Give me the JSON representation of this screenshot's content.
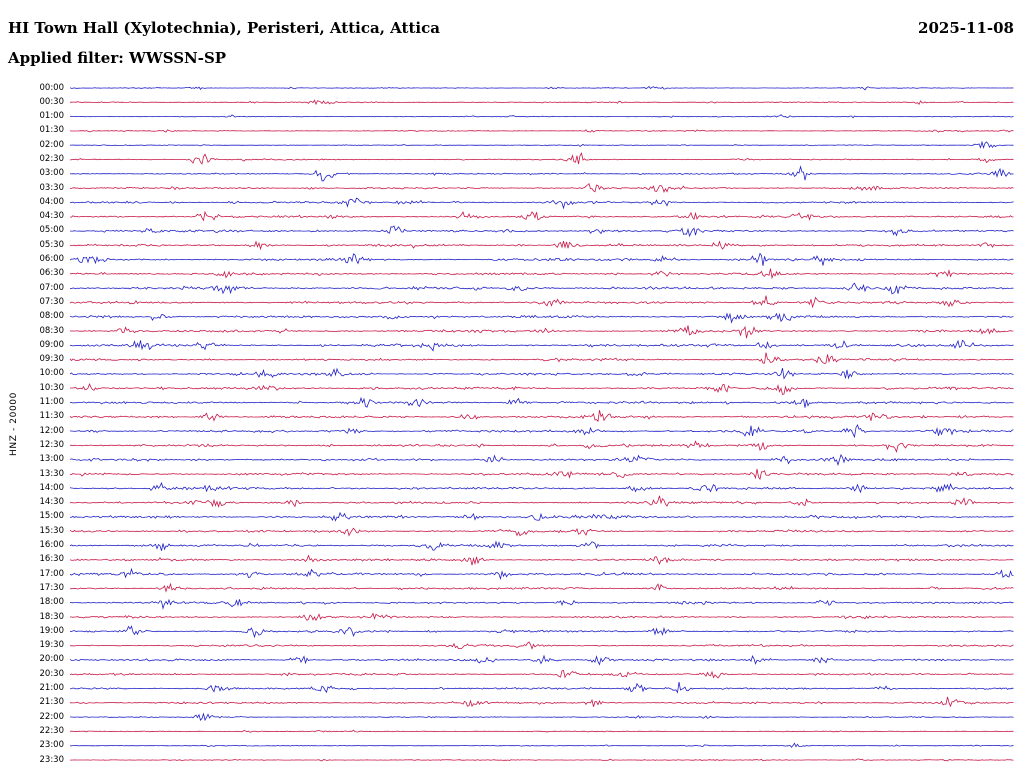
{
  "header": {
    "title": "HI Town Hall (Xylotechnia), Peristeri, Attica, Attica",
    "date": "2025-11-08",
    "filter": "Applied filter: WWSSN-SP"
  },
  "axis": {
    "station_label": "HNZ - 20000"
  },
  "chart_data": {
    "type": "seismogram-helicorder",
    "minutes_per_row": 30,
    "rows_count": 48,
    "seed": 20251108,
    "colors": {
      "b": "#2121c8",
      "r": "#c81848"
    },
    "x_range_label": [
      "start of half-hour",
      "end of half-hour"
    ],
    "rows": [
      {
        "t": "00:00",
        "c": "b",
        "a": 0.35,
        "e": [
          [
            0.62,
            0.8
          ]
        ]
      },
      {
        "t": "00:30",
        "c": "r",
        "a": 0.5,
        "e": [
          [
            0.27,
            0.6
          ],
          [
            0.9,
            0.7
          ]
        ]
      },
      {
        "t": "01:00",
        "c": "b",
        "a": 0.35,
        "e": []
      },
      {
        "t": "01:30",
        "c": "r",
        "a": 0.4,
        "e": [
          [
            0.55,
            0.5
          ]
        ]
      },
      {
        "t": "02:00",
        "c": "b",
        "a": 0.35,
        "e": [
          [
            0.97,
            1.8
          ]
        ]
      },
      {
        "t": "02:30",
        "c": "r",
        "a": 0.55,
        "e": [
          [
            0.14,
            2.6
          ],
          [
            0.535,
            2.8
          ],
          [
            0.97,
            1.0
          ]
        ]
      },
      {
        "t": "03:00",
        "c": "b",
        "a": 0.6,
        "e": [
          [
            0.27,
            2.2
          ],
          [
            0.775,
            2.6
          ],
          [
            0.985,
            1.4
          ]
        ]
      },
      {
        "t": "03:30",
        "c": "r",
        "a": 0.8,
        "e": [
          [
            0.555,
            2.0
          ],
          [
            0.625,
            1.8
          ],
          [
            0.845,
            1.6
          ]
        ]
      },
      {
        "t": "04:00",
        "c": "b",
        "a": 0.9,
        "e": [
          [
            0.3,
            2.2
          ],
          [
            0.52,
            1.5
          ],
          [
            0.625,
            1.3
          ]
        ]
      },
      {
        "t": "04:30",
        "c": "r",
        "a": 0.95,
        "e": [
          [
            0.145,
            1.8
          ],
          [
            0.42,
            1.2
          ],
          [
            0.49,
            1.4
          ],
          [
            0.655,
            1.6
          ],
          [
            0.775,
            1.7
          ]
        ]
      },
      {
        "t": "05:00",
        "c": "b",
        "a": 1.0,
        "e": [
          [
            0.085,
            1.2
          ],
          [
            0.345,
            1.5
          ],
          [
            0.56,
            1.2
          ],
          [
            0.655,
            2.0
          ],
          [
            0.875,
            1.4
          ]
        ]
      },
      {
        "t": "05:30",
        "c": "r",
        "a": 1.0,
        "e": [
          [
            0.2,
            1.3
          ],
          [
            0.525,
            1.6
          ],
          [
            0.69,
            1.8
          ],
          [
            0.975,
            1.2
          ]
        ]
      },
      {
        "t": "06:00",
        "c": "b",
        "a": 1.1,
        "e": [
          [
            0.02,
            1.6
          ],
          [
            0.3,
            1.4
          ],
          [
            0.63,
            1.5
          ],
          [
            0.73,
            2.4
          ],
          [
            0.8,
            1.4
          ]
        ]
      },
      {
        "t": "06:30",
        "c": "r",
        "a": 1.0,
        "e": [
          [
            0.165,
            1.4
          ],
          [
            0.625,
            1.5
          ],
          [
            0.745,
            2.0
          ],
          [
            0.925,
            1.3
          ]
        ]
      },
      {
        "t": "07:00",
        "c": "b",
        "a": 1.15,
        "e": [
          [
            0.165,
            2.2
          ],
          [
            0.475,
            1.3
          ],
          [
            0.83,
            2.2
          ],
          [
            0.875,
            2.6
          ]
        ]
      },
      {
        "t": "07:30",
        "c": "r",
        "a": 1.1,
        "e": [
          [
            0.51,
            1.4
          ],
          [
            0.735,
            2.2
          ],
          [
            0.79,
            1.8
          ],
          [
            0.935,
            1.6
          ]
        ]
      },
      {
        "t": "08:00",
        "c": "b",
        "a": 1.1,
        "e": [
          [
            0.09,
            1.3
          ],
          [
            0.345,
            1.2
          ],
          [
            0.7,
            1.9
          ],
          [
            0.755,
            2.3
          ]
        ]
      },
      {
        "t": "08:30",
        "c": "r",
        "a": 1.05,
        "e": [
          [
            0.06,
            1.2
          ],
          [
            0.5,
            1.3
          ],
          [
            0.655,
            1.7
          ],
          [
            0.72,
            2.1
          ],
          [
            0.975,
            1.3
          ]
        ]
      },
      {
        "t": "09:00",
        "c": "b",
        "a": 1.15,
        "e": [
          [
            0.075,
            1.6
          ],
          [
            0.145,
            1.5
          ],
          [
            0.385,
            1.6
          ],
          [
            0.74,
            1.4
          ],
          [
            0.815,
            1.5
          ],
          [
            0.945,
            1.7
          ]
        ]
      },
      {
        "t": "09:30",
        "c": "r",
        "a": 1.0,
        "e": [
          [
            0.74,
            2.4
          ],
          [
            0.8,
            2.0
          ]
        ]
      },
      {
        "t": "10:00",
        "c": "b",
        "a": 1.05,
        "e": [
          [
            0.21,
            1.4
          ],
          [
            0.285,
            1.6
          ],
          [
            0.6,
            1.2
          ],
          [
            0.755,
            1.5
          ],
          [
            0.825,
            1.4
          ]
        ]
      },
      {
        "t": "10:30",
        "c": "r",
        "a": 1.1,
        "e": [
          [
            0.02,
            1.4
          ],
          [
            0.21,
            1.3
          ],
          [
            0.69,
            1.6
          ],
          [
            0.755,
            1.9
          ]
        ]
      },
      {
        "t": "11:00",
        "c": "b",
        "a": 1.05,
        "e": [
          [
            0.315,
            1.5
          ],
          [
            0.365,
            1.3
          ],
          [
            0.475,
            1.2
          ],
          [
            0.775,
            1.8
          ]
        ]
      },
      {
        "t": "11:30",
        "c": "r",
        "a": 1.1,
        "e": [
          [
            0.15,
            1.6
          ],
          [
            0.42,
            1.3
          ],
          [
            0.565,
            2.2
          ],
          [
            0.855,
            1.5
          ]
        ]
      },
      {
        "t": "12:00",
        "c": "b",
        "a": 1.1,
        "e": [
          [
            0.3,
            1.2
          ],
          [
            0.55,
            1.3
          ],
          [
            0.72,
            1.8
          ],
          [
            0.83,
            1.6
          ],
          [
            0.925,
            1.9
          ]
        ]
      },
      {
        "t": "12:30",
        "c": "r",
        "a": 1.0,
        "e": [
          [
            0.555,
            1.3
          ],
          [
            0.665,
            1.4
          ],
          [
            0.73,
            1.6
          ],
          [
            0.875,
            2.2
          ]
        ]
      },
      {
        "t": "13:00",
        "c": "b",
        "a": 1.1,
        "e": [
          [
            0.45,
            1.3
          ],
          [
            0.6,
            1.4
          ],
          [
            0.755,
            1.7
          ],
          [
            0.81,
            1.9
          ]
        ]
      },
      {
        "t": "13:30",
        "c": "r",
        "a": 1.05,
        "e": [
          [
            0.525,
            1.6
          ],
          [
            0.585,
            1.5
          ],
          [
            0.73,
            1.5
          ],
          [
            0.945,
            1.3
          ]
        ]
      },
      {
        "t": "14:00",
        "c": "b",
        "a": 1.1,
        "e": [
          [
            0.095,
            1.5
          ],
          [
            0.145,
            1.4
          ],
          [
            0.6,
            1.6
          ],
          [
            0.675,
            1.7
          ],
          [
            0.835,
            1.5
          ],
          [
            0.925,
            1.4
          ]
        ]
      },
      {
        "t": "14:30",
        "c": "r",
        "a": 1.05,
        "e": [
          [
            0.155,
            1.7
          ],
          [
            0.235,
            1.4
          ],
          [
            0.625,
            1.5
          ],
          [
            0.775,
            1.4
          ],
          [
            0.945,
            1.9
          ]
        ]
      },
      {
        "t": "15:00",
        "c": "b",
        "a": 1.1,
        "e": [
          [
            0.285,
            1.4
          ],
          [
            0.425,
            1.6
          ],
          [
            0.5,
            1.5
          ],
          [
            0.565,
            1.4
          ]
        ]
      },
      {
        "t": "15:30",
        "c": "r",
        "a": 1.0,
        "e": [
          [
            0.3,
            1.4
          ],
          [
            0.475,
            1.7
          ],
          [
            0.545,
            1.5
          ]
        ]
      },
      {
        "t": "16:00",
        "c": "b",
        "a": 1.05,
        "e": [
          [
            0.1,
            1.3
          ],
          [
            0.385,
            1.5
          ],
          [
            0.455,
            1.4
          ],
          [
            0.55,
            1.6
          ]
        ]
      },
      {
        "t": "16:30",
        "c": "r",
        "a": 1.0,
        "e": [
          [
            0.255,
            1.5
          ],
          [
            0.425,
            1.6
          ],
          [
            0.625,
            1.4
          ]
        ]
      },
      {
        "t": "17:00",
        "c": "b",
        "a": 1.05,
        "e": [
          [
            0.065,
            1.5
          ],
          [
            0.19,
            1.7
          ],
          [
            0.26,
            1.5
          ],
          [
            0.455,
            1.4
          ],
          [
            0.99,
            1.8
          ]
        ]
      },
      {
        "t": "17:30",
        "c": "r",
        "a": 0.95,
        "e": [
          [
            0.105,
            1.5
          ],
          [
            0.625,
            1.3
          ]
        ]
      },
      {
        "t": "18:00",
        "c": "b",
        "a": 0.9,
        "e": [
          [
            0.1,
            1.4
          ],
          [
            0.175,
            1.3
          ],
          [
            0.525,
            1.2
          ],
          [
            0.8,
            1.4
          ]
        ]
      },
      {
        "t": "18:30",
        "c": "r",
        "a": 0.85,
        "e": [
          [
            0.255,
            1.4
          ],
          [
            0.325,
            1.3
          ]
        ]
      },
      {
        "t": "19:00",
        "c": "b",
        "a": 0.9,
        "e": [
          [
            0.065,
            1.5
          ],
          [
            0.195,
            1.8
          ],
          [
            0.295,
            1.9
          ],
          [
            0.625,
            1.3
          ]
        ]
      },
      {
        "t": "19:30",
        "c": "r",
        "a": 0.85,
        "e": [
          [
            0.415,
            1.8
          ],
          [
            0.485,
            1.4
          ]
        ]
      },
      {
        "t": "20:00",
        "c": "b",
        "a": 0.9,
        "e": [
          [
            0.245,
            1.4
          ],
          [
            0.44,
            1.6
          ],
          [
            0.5,
            1.5
          ],
          [
            0.565,
            1.3
          ],
          [
            0.73,
            1.6
          ],
          [
            0.795,
            1.5
          ]
        ]
      },
      {
        "t": "20:30",
        "c": "r",
        "a": 0.85,
        "e": [
          [
            0.525,
            1.5
          ],
          [
            0.585,
            1.7
          ],
          [
            0.685,
            1.4
          ]
        ]
      },
      {
        "t": "21:00",
        "c": "b",
        "a": 0.85,
        "e": [
          [
            0.155,
            1.6
          ],
          [
            0.265,
            1.5
          ],
          [
            0.6,
            1.8
          ],
          [
            0.645,
            2.0
          ]
        ]
      },
      {
        "t": "21:30",
        "c": "r",
        "a": 0.85,
        "e": [
          [
            0.425,
            1.9
          ],
          [
            0.555,
            1.4
          ],
          [
            0.935,
            2.2
          ]
        ]
      },
      {
        "t": "22:00",
        "c": "b",
        "a": 0.45,
        "e": [
          [
            0.145,
            1.6
          ]
        ]
      },
      {
        "t": "22:30",
        "c": "r",
        "a": 0.4,
        "e": []
      },
      {
        "t": "23:00",
        "c": "b",
        "a": 0.35,
        "e": [
          [
            0.77,
            0.9
          ]
        ]
      },
      {
        "t": "23:30",
        "c": "r",
        "a": 0.35,
        "e": []
      }
    ]
  }
}
